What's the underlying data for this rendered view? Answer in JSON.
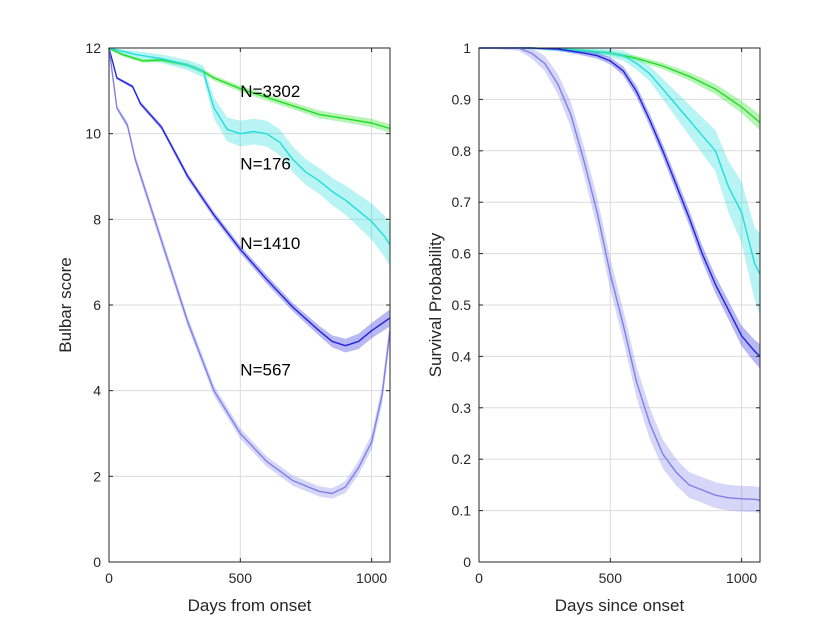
{
  "chart_data": [
    {
      "type": "line",
      "xlabel": "Days from onset",
      "ylabel": "Bulbar score",
      "xlim": [
        0,
        1070
      ],
      "ylim": [
        0,
        12
      ],
      "xticks": [
        0,
        500,
        1000
      ],
      "yticks": [
        0,
        2,
        4,
        6,
        8,
        10,
        12
      ],
      "ytick_labels": [
        "0",
        "2",
        "4",
        "6",
        "8",
        "10",
        "12"
      ],
      "grid": true,
      "annotations": [
        {
          "text": "N=3302",
          "x": 500,
          "y": 11.0
        },
        {
          "text": "N=176",
          "x": 500,
          "y": 9.3
        },
        {
          "text": "N=1410",
          "x": 500,
          "y": 7.45
        },
        {
          "text": "N=567",
          "x": 500,
          "y": 4.5
        }
      ],
      "series": [
        {
          "color": "#22dd22",
          "x": [
            0,
            50,
            100,
            130,
            200,
            300,
            360,
            400,
            500,
            600,
            700,
            800,
            900,
            1000,
            1070
          ],
          "y": [
            12,
            11.85,
            11.75,
            11.7,
            11.72,
            11.6,
            11.45,
            11.3,
            11.05,
            10.85,
            10.65,
            10.45,
            10.35,
            10.25,
            10.12
          ],
          "band": [
            0.04,
            0.04,
            0.04,
            0.04,
            0.05,
            0.05,
            0.06,
            0.06,
            0.07,
            0.08,
            0.08,
            0.09,
            0.09,
            0.1,
            0.1
          ]
        },
        {
          "color": "#22dddd",
          "x": [
            0,
            100,
            200,
            300,
            360,
            380,
            400,
            450,
            500,
            550,
            600,
            650,
            700,
            750,
            800,
            850,
            900,
            950,
            1000,
            1050,
            1070
          ],
          "y": [
            12,
            11.85,
            11.75,
            11.6,
            11.45,
            11.0,
            10.6,
            10.1,
            10.0,
            10.05,
            10.0,
            9.8,
            9.4,
            9.1,
            8.9,
            8.65,
            8.45,
            8.2,
            7.95,
            7.6,
            7.4
          ],
          "band": [
            0.05,
            0.08,
            0.1,
            0.12,
            0.14,
            0.2,
            0.25,
            0.28,
            0.3,
            0.3,
            0.3,
            0.3,
            0.3,
            0.3,
            0.3,
            0.32,
            0.34,
            0.38,
            0.42,
            0.48,
            0.5
          ]
        },
        {
          "color": "#2222dd",
          "x": [
            0,
            30,
            90,
            120,
            200,
            300,
            400,
            500,
            600,
            700,
            800,
            850,
            900,
            950,
            1000,
            1070
          ],
          "y": [
            12,
            11.3,
            11.1,
            10.7,
            10.15,
            9.0,
            8.1,
            7.3,
            6.6,
            5.95,
            5.4,
            5.15,
            5.05,
            5.15,
            5.4,
            5.7
          ],
          "band": [
            0.02,
            0.03,
            0.04,
            0.05,
            0.06,
            0.07,
            0.08,
            0.09,
            0.1,
            0.1,
            0.12,
            0.14,
            0.16,
            0.18,
            0.18,
            0.2
          ]
        },
        {
          "color": "#8080e8",
          "x": [
            0,
            30,
            70,
            100,
            200,
            300,
            400,
            500,
            600,
            700,
            800,
            850,
            900,
            950,
            1000,
            1040,
            1070
          ],
          "y": [
            12,
            10.6,
            10.2,
            9.4,
            7.5,
            5.6,
            4.0,
            3.0,
            2.35,
            1.9,
            1.65,
            1.6,
            1.75,
            2.2,
            2.8,
            3.9,
            5.4
          ],
          "band": [
            0.03,
            0.05,
            0.08,
            0.1,
            0.12,
            0.12,
            0.12,
            0.12,
            0.12,
            0.12,
            0.12,
            0.12,
            0.14,
            0.16,
            0.18,
            0.22,
            0.26
          ]
        }
      ]
    },
    {
      "type": "line",
      "xlabel": "Days since onset",
      "ylabel": "Survival Probability",
      "xlim": [
        0,
        1070
      ],
      "ylim": [
        0,
        1
      ],
      "xticks": [
        0,
        500,
        1000
      ],
      "yticks": [
        0,
        0.1,
        0.2,
        0.3,
        0.4,
        0.5,
        0.6,
        0.7,
        0.8,
        0.9,
        1
      ],
      "ytick_labels": [
        "0",
        "0.1",
        "0.2",
        "0.3",
        "0.4",
        "0.5",
        "0.6",
        "0.7",
        "0.8",
        "0.9",
        "1"
      ],
      "grid": true,
      "series": [
        {
          "color": "#22dd22",
          "x": [
            0,
            200,
            300,
            400,
            500,
            600,
            700,
            800,
            900,
            1000,
            1070
          ],
          "y": [
            1,
            1,
            0.998,
            0.995,
            0.99,
            0.98,
            0.965,
            0.945,
            0.92,
            0.885,
            0.855
          ],
          "band": [
            0,
            0.001,
            0.002,
            0.003,
            0.004,
            0.005,
            0.006,
            0.008,
            0.01,
            0.012,
            0.015
          ]
        },
        {
          "color": "#22dddd",
          "x": [
            0,
            200,
            300,
            400,
            500,
            550,
            600,
            650,
            700,
            750,
            800,
            850,
            900,
            950,
            1000,
            1050,
            1070
          ],
          "y": [
            1,
            1,
            0.998,
            0.995,
            0.99,
            0.985,
            0.97,
            0.95,
            0.92,
            0.89,
            0.86,
            0.83,
            0.8,
            0.73,
            0.68,
            0.58,
            0.56
          ],
          "band": [
            0,
            0.003,
            0.005,
            0.006,
            0.008,
            0.01,
            0.012,
            0.015,
            0.02,
            0.025,
            0.03,
            0.035,
            0.04,
            0.05,
            0.06,
            0.07,
            0.08
          ]
        },
        {
          "color": "#2222dd",
          "x": [
            0,
            200,
            300,
            400,
            450,
            500,
            550,
            600,
            650,
            700,
            750,
            800,
            850,
            900,
            950,
            1000,
            1050,
            1070
          ],
          "y": [
            1,
            1,
            0.998,
            0.99,
            0.985,
            0.975,
            0.955,
            0.915,
            0.86,
            0.8,
            0.735,
            0.67,
            0.6,
            0.54,
            0.49,
            0.44,
            0.41,
            0.4
          ],
          "band": [
            0,
            0.002,
            0.003,
            0.005,
            0.006,
            0.007,
            0.009,
            0.011,
            0.012,
            0.013,
            0.014,
            0.015,
            0.016,
            0.017,
            0.018,
            0.02,
            0.022,
            0.024
          ]
        },
        {
          "color": "#8080e8",
          "x": [
            0,
            150,
            200,
            250,
            300,
            350,
            400,
            450,
            500,
            550,
            600,
            650,
            700,
            750,
            800,
            850,
            900,
            950,
            1000,
            1050,
            1070
          ],
          "y": [
            1,
            1,
            0.99,
            0.97,
            0.93,
            0.87,
            0.78,
            0.68,
            0.56,
            0.46,
            0.35,
            0.27,
            0.21,
            0.175,
            0.15,
            0.14,
            0.13,
            0.125,
            0.123,
            0.122,
            0.12
          ],
          "band": [
            0,
            0.005,
            0.01,
            0.015,
            0.02,
            0.025,
            0.028,
            0.03,
            0.03,
            0.03,
            0.03,
            0.03,
            0.028,
            0.026,
            0.025,
            0.025,
            0.025,
            0.025,
            0.025,
            0.025,
            0.025
          ]
        }
      ]
    }
  ]
}
